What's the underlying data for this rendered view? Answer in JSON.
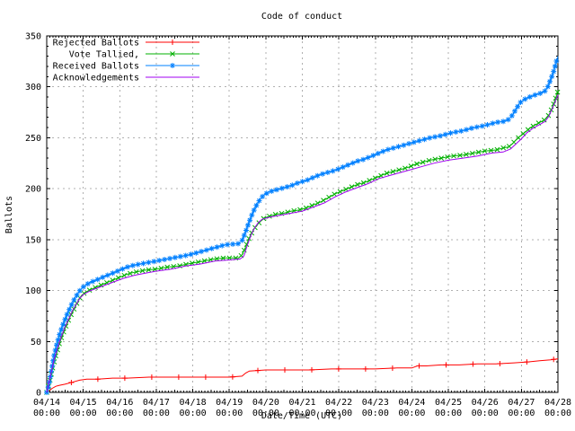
{
  "chart_data": {
    "type": "line",
    "title": "Code of conduct",
    "xlabel": "Date/Time (UTC)",
    "ylabel": "Ballots",
    "ylim": [
      0,
      350
    ],
    "xlim_days": 14,
    "x_range": [
      "04/14 00:00",
      "04/28 00:00"
    ],
    "grid": "dashed",
    "legend_position": "top-left-inside",
    "x_tick_labels": [
      "04/14",
      "04/15",
      "04/16",
      "04/17",
      "04/18",
      "04/19",
      "04/20",
      "04/21",
      "04/22",
      "04/23",
      "04/24",
      "04/25",
      "04/26",
      "04/27",
      "04/28"
    ],
    "x_tick_sublabel": "00:00",
    "y_ticks": [
      0,
      50,
      100,
      150,
      200,
      250,
      300,
      350
    ],
    "series": [
      {
        "name": "Rejected Ballots",
        "color": "#ff0000",
        "marker": "plus",
        "points": [
          [
            0,
            0
          ],
          [
            0.08,
            2
          ],
          [
            0.15,
            4
          ],
          [
            0.25,
            6
          ],
          [
            0.35,
            7
          ],
          [
            0.5,
            8
          ],
          [
            0.7,
            10
          ],
          [
            0.9,
            12
          ],
          [
            1.1,
            13
          ],
          [
            1.4,
            13
          ],
          [
            1.8,
            14
          ],
          [
            2.2,
            14
          ],
          [
            2.8,
            15
          ],
          [
            3.5,
            15
          ],
          [
            4.2,
            15
          ],
          [
            5.0,
            15
          ],
          [
            5.35,
            16
          ],
          [
            5.45,
            19
          ],
          [
            5.55,
            21
          ],
          [
            6.0,
            22
          ],
          [
            6.6,
            22
          ],
          [
            7.2,
            22
          ],
          [
            7.8,
            23
          ],
          [
            8.4,
            23
          ],
          [
            9.0,
            23
          ],
          [
            9.6,
            24
          ],
          [
            10.0,
            24
          ],
          [
            10.15,
            26
          ],
          [
            10.4,
            26
          ],
          [
            10.8,
            27
          ],
          [
            11.3,
            27
          ],
          [
            11.8,
            28
          ],
          [
            12.3,
            28
          ],
          [
            12.8,
            29
          ],
          [
            13.2,
            30
          ],
          [
            13.5,
            31
          ],
          [
            13.8,
            32
          ],
          [
            14,
            33
          ]
        ]
      },
      {
        "name": "Vote Tallied,",
        "color": "#00b000",
        "marker": "cross",
        "points": [
          [
            0,
            0
          ],
          [
            0.08,
            10
          ],
          [
            0.15,
            22
          ],
          [
            0.25,
            36
          ],
          [
            0.35,
            48
          ],
          [
            0.45,
            58
          ],
          [
            0.55,
            67
          ],
          [
            0.65,
            75
          ],
          [
            0.75,
            82
          ],
          [
            0.85,
            89
          ],
          [
            0.95,
            95
          ],
          [
            1.05,
            98
          ],
          [
            1.2,
            101
          ],
          [
            1.4,
            104
          ],
          [
            1.6,
            107
          ],
          [
            1.8,
            110
          ],
          [
            2.0,
            113
          ],
          [
            2.2,
            116
          ],
          [
            2.4,
            118
          ],
          [
            2.7,
            120
          ],
          [
            3.0,
            121
          ],
          [
            3.3,
            123
          ],
          [
            3.6,
            124
          ],
          [
            4.0,
            127
          ],
          [
            4.3,
            129
          ],
          [
            4.6,
            131
          ],
          [
            4.9,
            132
          ],
          [
            5.25,
            132
          ],
          [
            5.35,
            135
          ],
          [
            5.45,
            143
          ],
          [
            5.55,
            152
          ],
          [
            5.65,
            159
          ],
          [
            5.75,
            164
          ],
          [
            5.85,
            168
          ],
          [
            5.95,
            171
          ],
          [
            6.1,
            173
          ],
          [
            6.3,
            175
          ],
          [
            6.5,
            176
          ],
          [
            6.7,
            178
          ],
          [
            6.9,
            179
          ],
          [
            7.1,
            181
          ],
          [
            7.3,
            184
          ],
          [
            7.5,
            187
          ],
          [
            7.7,
            191
          ],
          [
            7.9,
            195
          ],
          [
            8.1,
            198
          ],
          [
            8.3,
            201
          ],
          [
            8.5,
            204
          ],
          [
            8.7,
            206
          ],
          [
            8.9,
            209
          ],
          [
            9.1,
            212
          ],
          [
            9.3,
            215
          ],
          [
            9.5,
            217
          ],
          [
            9.7,
            219
          ],
          [
            9.9,
            221
          ],
          [
            10.1,
            224
          ],
          [
            10.3,
            226
          ],
          [
            10.5,
            228
          ],
          [
            10.8,
            230
          ],
          [
            11.1,
            232
          ],
          [
            11.4,
            233
          ],
          [
            11.7,
            235
          ],
          [
            12.0,
            237
          ],
          [
            12.3,
            238
          ],
          [
            12.5,
            240
          ],
          [
            12.65,
            241
          ],
          [
            12.75,
            244
          ],
          [
            12.85,
            248
          ],
          [
            12.95,
            251
          ],
          [
            13.05,
            254
          ],
          [
            13.15,
            257
          ],
          [
            13.25,
            260
          ],
          [
            13.4,
            263
          ],
          [
            13.55,
            266
          ],
          [
            13.65,
            268
          ],
          [
            13.72,
            271
          ],
          [
            13.78,
            274
          ],
          [
            13.85,
            280
          ],
          [
            13.92,
            287
          ],
          [
            14,
            296
          ]
        ]
      },
      {
        "name": "Received Ballots",
        "color": "#0080ff",
        "marker": "star",
        "points": [
          [
            0,
            0
          ],
          [
            0.05,
            6
          ],
          [
            0.1,
            15
          ],
          [
            0.15,
            26
          ],
          [
            0.2,
            36
          ],
          [
            0.28,
            48
          ],
          [
            0.36,
            58
          ],
          [
            0.45,
            67
          ],
          [
            0.55,
            76
          ],
          [
            0.65,
            84
          ],
          [
            0.75,
            91
          ],
          [
            0.85,
            97
          ],
          [
            0.95,
            102
          ],
          [
            1.05,
            105
          ],
          [
            1.2,
            108
          ],
          [
            1.4,
            111
          ],
          [
            1.6,
            114
          ],
          [
            1.8,
            117
          ],
          [
            2.0,
            120
          ],
          [
            2.2,
            123
          ],
          [
            2.4,
            125
          ],
          [
            2.7,
            127
          ],
          [
            3.0,
            129
          ],
          [
            3.3,
            131
          ],
          [
            3.6,
            133
          ],
          [
            3.9,
            135
          ],
          [
            4.2,
            138
          ],
          [
            4.5,
            141
          ],
          [
            4.7,
            143
          ],
          [
            4.9,
            145
          ],
          [
            5.25,
            146
          ],
          [
            5.35,
            149
          ],
          [
            5.45,
            158
          ],
          [
            5.55,
            168
          ],
          [
            5.65,
            177
          ],
          [
            5.75,
            184
          ],
          [
            5.85,
            190
          ],
          [
            5.95,
            194
          ],
          [
            6.1,
            197
          ],
          [
            6.3,
            199
          ],
          [
            6.5,
            201
          ],
          [
            6.7,
            203
          ],
          [
            6.9,
            206
          ],
          [
            7.1,
            208
          ],
          [
            7.3,
            211
          ],
          [
            7.5,
            214
          ],
          [
            7.7,
            216
          ],
          [
            7.9,
            218
          ],
          [
            8.1,
            221
          ],
          [
            8.3,
            224
          ],
          [
            8.5,
            227
          ],
          [
            8.7,
            229
          ],
          [
            8.9,
            232
          ],
          [
            9.1,
            235
          ],
          [
            9.3,
            238
          ],
          [
            9.5,
            240
          ],
          [
            9.7,
            242
          ],
          [
            9.9,
            244
          ],
          [
            10.1,
            246
          ],
          [
            10.3,
            248
          ],
          [
            10.5,
            250
          ],
          [
            10.8,
            252
          ],
          [
            11.1,
            255
          ],
          [
            11.4,
            257
          ],
          [
            11.7,
            260
          ],
          [
            12.0,
            262
          ],
          [
            12.3,
            265
          ],
          [
            12.5,
            266
          ],
          [
            12.65,
            268
          ],
          [
            12.75,
            272
          ],
          [
            12.85,
            278
          ],
          [
            12.95,
            284
          ],
          [
            13.05,
            287
          ],
          [
            13.15,
            289
          ],
          [
            13.3,
            291
          ],
          [
            13.45,
            293
          ],
          [
            13.55,
            294
          ],
          [
            13.65,
            296
          ],
          [
            13.72,
            300
          ],
          [
            13.8,
            307
          ],
          [
            13.88,
            315
          ],
          [
            13.95,
            324
          ],
          [
            14,
            330
          ]
        ]
      },
      {
        "name": "Acknowledgements",
        "color": "#a000f0",
        "marker": "none",
        "points": [
          [
            0,
            0
          ],
          [
            0.1,
            16
          ],
          [
            0.2,
            32
          ],
          [
            0.3,
            44
          ],
          [
            0.4,
            55
          ],
          [
            0.5,
            64
          ],
          [
            0.6,
            72
          ],
          [
            0.7,
            80
          ],
          [
            0.8,
            86
          ],
          [
            0.9,
            92
          ],
          [
            1.0,
            96
          ],
          [
            1.2,
            100
          ],
          [
            1.5,
            104
          ],
          [
            1.8,
            108
          ],
          [
            2.1,
            112
          ],
          [
            2.4,
            115
          ],
          [
            2.7,
            117
          ],
          [
            3.0,
            119
          ],
          [
            3.4,
            121
          ],
          [
            3.8,
            124
          ],
          [
            4.2,
            126
          ],
          [
            4.6,
            129
          ],
          [
            5.0,
            130
          ],
          [
            5.3,
            131
          ],
          [
            5.4,
            134
          ],
          [
            5.5,
            145
          ],
          [
            5.6,
            155
          ],
          [
            5.7,
            162
          ],
          [
            5.8,
            167
          ],
          [
            5.9,
            170
          ],
          [
            6.1,
            172
          ],
          [
            6.4,
            174
          ],
          [
            6.7,
            176
          ],
          [
            7.0,
            178
          ],
          [
            7.3,
            182
          ],
          [
            7.6,
            186
          ],
          [
            7.9,
            192
          ],
          [
            8.2,
            197
          ],
          [
            8.5,
            201
          ],
          [
            8.8,
            205
          ],
          [
            9.1,
            210
          ],
          [
            9.4,
            213
          ],
          [
            9.7,
            216
          ],
          [
            10.0,
            219
          ],
          [
            10.3,
            222
          ],
          [
            10.6,
            225
          ],
          [
            11.0,
            228
          ],
          [
            11.4,
            230
          ],
          [
            11.8,
            232
          ],
          [
            12.2,
            235
          ],
          [
            12.5,
            236
          ],
          [
            12.7,
            239
          ],
          [
            12.85,
            244
          ],
          [
            13.0,
            249
          ],
          [
            13.15,
            255
          ],
          [
            13.3,
            259
          ],
          [
            13.5,
            263
          ],
          [
            13.65,
            266
          ],
          [
            13.75,
            271
          ],
          [
            13.85,
            279
          ],
          [
            13.95,
            288
          ],
          [
            14,
            292
          ]
        ]
      }
    ]
  }
}
